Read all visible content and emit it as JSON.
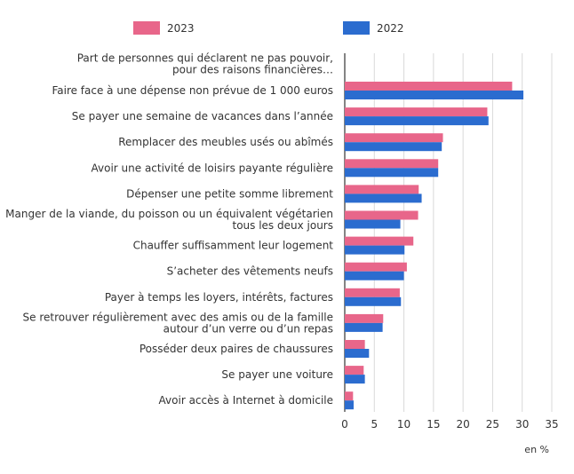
{
  "chart_data": {
    "type": "bar",
    "orientation": "horizontal",
    "header_label": "Part de personnes qui déclarent ne pas pouvoir,\npour des raisons financières…",
    "categories": [
      "Faire face à une dépense non prévue de 1 000 euros",
      "Se payer une semaine de vacances dans l’année",
      "Remplacer des meubles usés ou abîmés",
      "Avoir une activité de loisirs payante régulière",
      "Dépenser une petite somme librement",
      "Manger de la viande, du poisson ou un équivalent végétarien\ntous les deux jours",
      "Chauffer suffisamment leur logement",
      "S’acheter des vêtements neufs",
      "Payer à temps les loyers, intérêts, factures",
      "Se retrouver régulièrement avec des amis ou de la famille\nautour d’un verre ou d’un repas",
      "Posséder deux paires de chaussures",
      "Se payer une voiture",
      "Avoir accès à Internet à domicile"
    ],
    "series": [
      {
        "name": "2023",
        "color": "#e8668a",
        "values": [
          28.3,
          24.1,
          16.6,
          15.8,
          12.5,
          12.4,
          11.6,
          10.5,
          9.3,
          6.5,
          3.4,
          3.2,
          1.4
        ]
      },
      {
        "name": "2022",
        "color": "#2b6ccf",
        "values": [
          30.2,
          24.3,
          16.4,
          15.8,
          13.0,
          9.4,
          10.1,
          10.0,
          9.5,
          6.4,
          4.1,
          3.4,
          1.5
        ]
      }
    ],
    "xticks": [
      "0",
      "5",
      "10",
      "15",
      "20",
      "25",
      "30",
      "35"
    ],
    "xlim": [
      0,
      35
    ],
    "unit_label": "en %",
    "grid": true,
    "legend_position": "top"
  }
}
